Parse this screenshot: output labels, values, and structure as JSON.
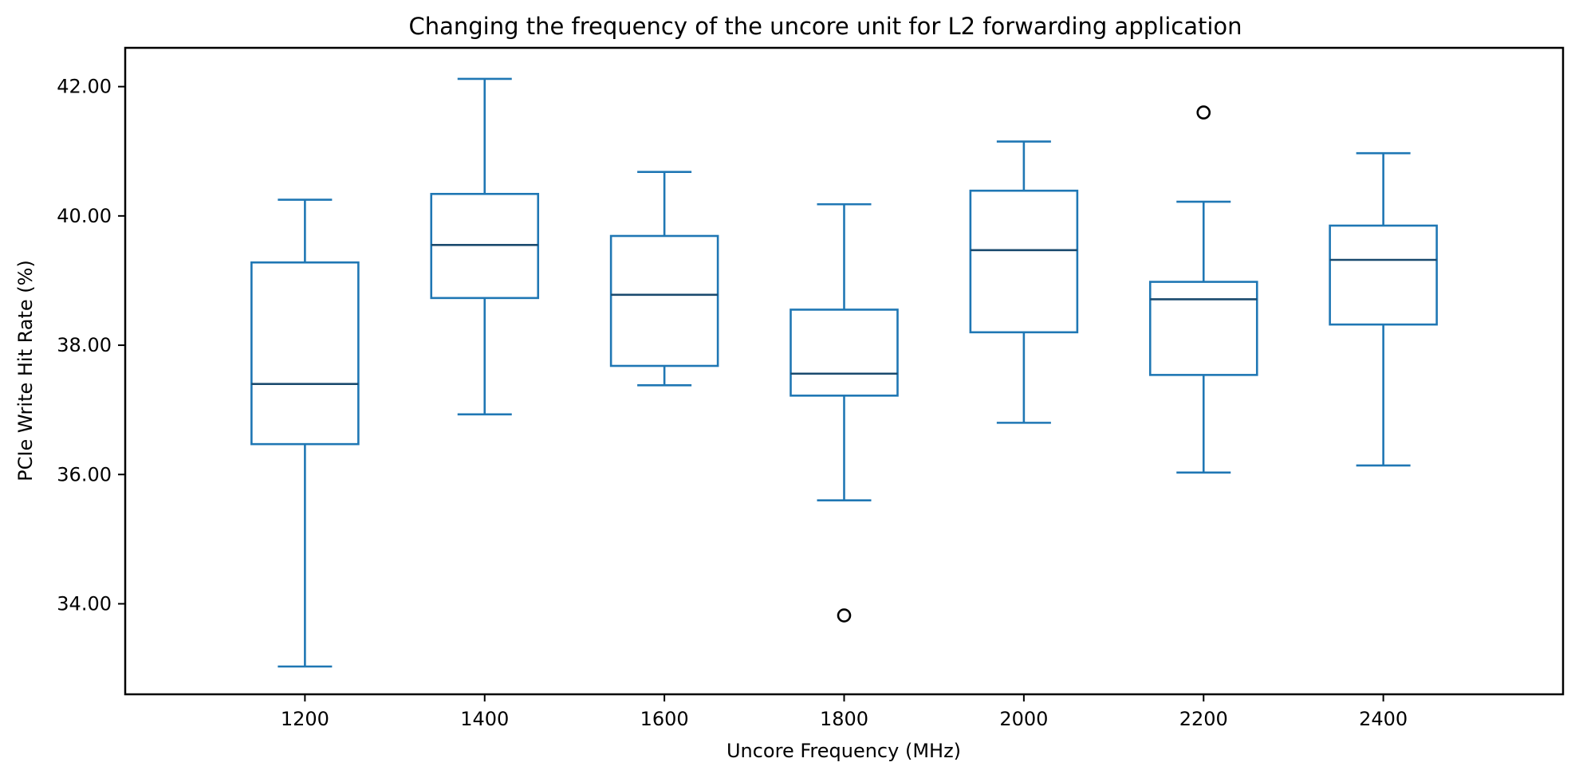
{
  "chart_data": {
    "type": "box",
    "title": "Changing the frequency of the uncore unit for L2 forwarding application",
    "xlabel": "Uncore Frequency (MHz)",
    "ylabel": "PCIe Write Hit Rate (%)",
    "ylim": [
      32.6,
      42.6
    ],
    "xlim": [
      1000,
      2600
    ],
    "yticks": [
      "34.00",
      "36.00",
      "38.00",
      "40.00",
      "42.00"
    ],
    "colors": {
      "box": "#1f77b4",
      "median": "#1a4a6e",
      "axes": "#000000"
    },
    "series": [
      {
        "x": "1200",
        "whisker_low": 33.03,
        "q1": 36.47,
        "median": 37.4,
        "q3": 39.28,
        "whisker_high": 40.25,
        "outliers": []
      },
      {
        "x": "1400",
        "whisker_low": 36.93,
        "q1": 38.73,
        "median": 39.55,
        "q3": 40.34,
        "whisker_high": 42.12,
        "outliers": []
      },
      {
        "x": "1600",
        "whisker_low": 37.38,
        "q1": 37.68,
        "median": 38.78,
        "q3": 39.69,
        "whisker_high": 40.68,
        "outliers": []
      },
      {
        "x": "1800",
        "whisker_low": 35.6,
        "q1": 37.22,
        "median": 37.56,
        "q3": 38.55,
        "whisker_high": 40.18,
        "outliers": [
          33.82
        ]
      },
      {
        "x": "2000",
        "whisker_low": 36.8,
        "q1": 38.2,
        "median": 39.47,
        "q3": 40.39,
        "whisker_high": 41.15,
        "outliers": []
      },
      {
        "x": "2200",
        "whisker_low": 36.03,
        "q1": 37.54,
        "median": 38.71,
        "q3": 38.98,
        "whisker_high": 40.22,
        "outliers": [
          41.6
        ]
      },
      {
        "x": "2400",
        "whisker_low": 36.14,
        "q1": 38.32,
        "median": 39.32,
        "q3": 39.85,
        "whisker_high": 40.97,
        "outliers": []
      }
    ]
  }
}
